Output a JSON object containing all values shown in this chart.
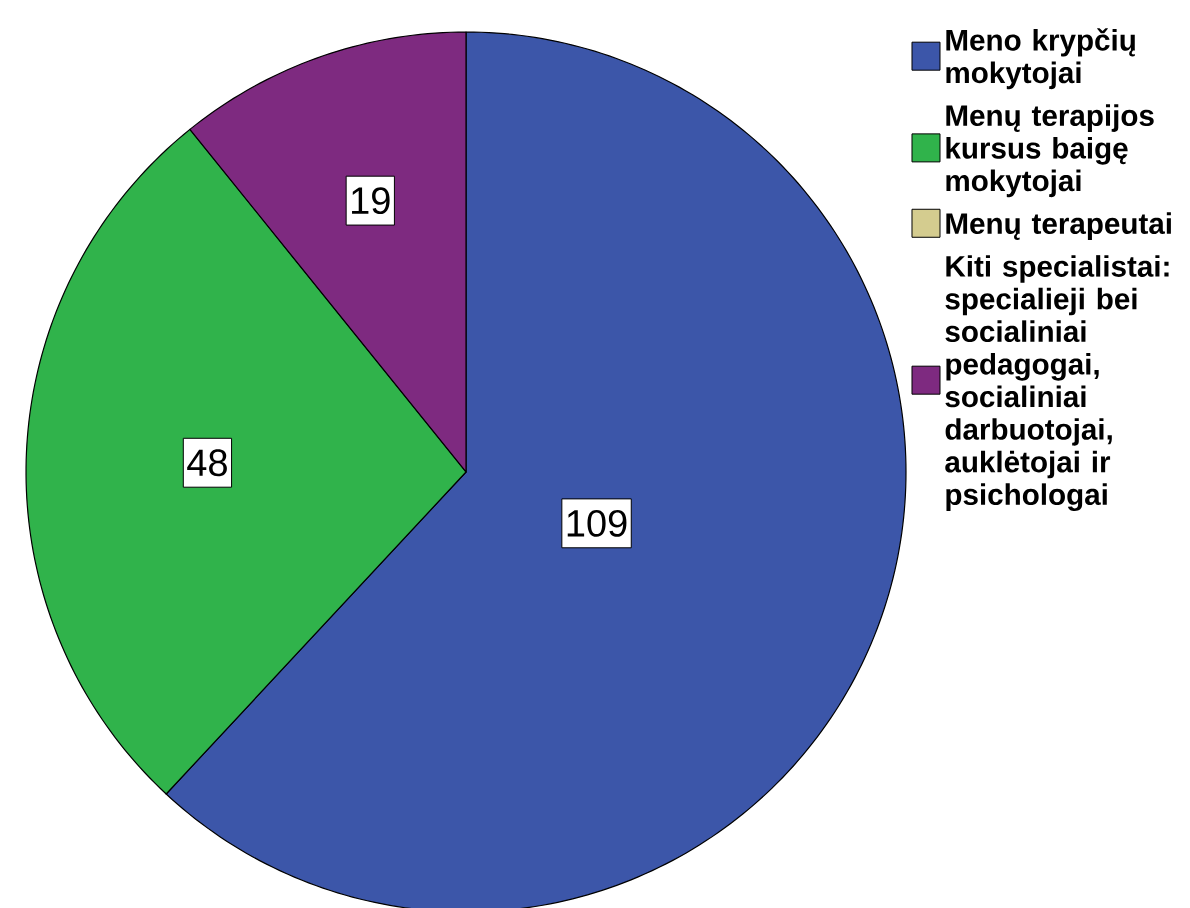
{
  "chart_data": {
    "type": "pie",
    "categories": [
      "Meno krypčių mokytojai",
      "Menų terapijos kursus baigę mokytojai",
      "Menų terapeutai",
      "Kiti specialistai: specialieji bei socialiniai pedagogai, socialiniai darbuotojai, auklėtojai ir psichologai"
    ],
    "values": [
      109,
      48,
      0,
      19
    ],
    "value_labels": [
      "109",
      "48",
      null,
      "19"
    ],
    "colors": [
      "#3c56a9",
      "#30b34b",
      "#d4cc8f",
      "#7e2a80"
    ],
    "legend": "top right"
  }
}
